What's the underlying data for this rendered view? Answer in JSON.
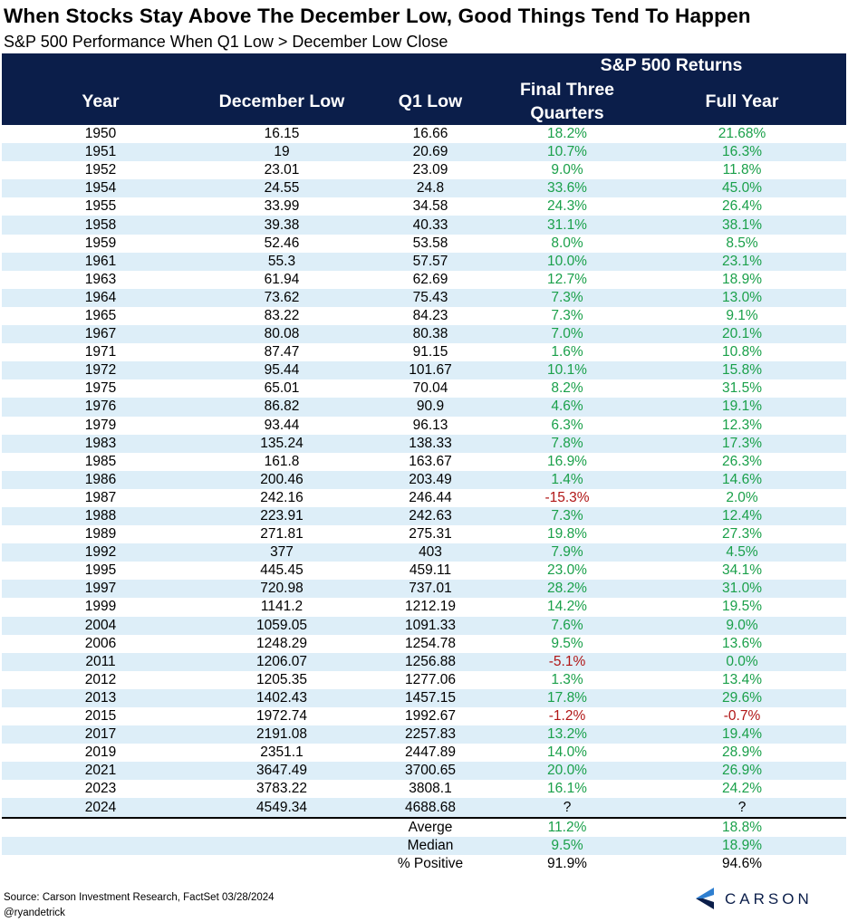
{
  "title": "When Stocks Stay Above The December Low, Good Things Tend To Happen",
  "subtitle": "S&P 500 Performance When Q1 Low > December Low Close",
  "headers": {
    "group": "S&P 500 Returns",
    "year": "Year",
    "dec_low": "December Low",
    "q1_low": "Q1 Low",
    "final_three_line1": "Final Three",
    "final_three_line2": "Quarters",
    "full_year": "Full Year"
  },
  "colors": {
    "header_bg": "#0b1e4a",
    "stripe": "#ddeef8",
    "positive": "#1aa04a",
    "negative": "#b01515"
  },
  "chart_data": {
    "type": "table",
    "title": "When Stocks Stay Above The December Low, Good Things Tend To Happen",
    "subtitle": "S&P 500 Performance When Q1 Low > December Low Close",
    "columns": [
      "Year",
      "December Low",
      "Q1 Low",
      "Final Three Quarters",
      "Full Year"
    ],
    "rows": [
      [
        "1950",
        "16.15",
        "16.66",
        "18.2%",
        "21.68%"
      ],
      [
        "1951",
        "19",
        "20.69",
        "10.7%",
        "16.3%"
      ],
      [
        "1952",
        "23.01",
        "23.09",
        "9.0%",
        "11.8%"
      ],
      [
        "1954",
        "24.55",
        "24.8",
        "33.6%",
        "45.0%"
      ],
      [
        "1955",
        "33.99",
        "34.58",
        "24.3%",
        "26.4%"
      ],
      [
        "1958",
        "39.38",
        "40.33",
        "31.1%",
        "38.1%"
      ],
      [
        "1959",
        "52.46",
        "53.58",
        "8.0%",
        "8.5%"
      ],
      [
        "1961",
        "55.3",
        "57.57",
        "10.0%",
        "23.1%"
      ],
      [
        "1963",
        "61.94",
        "62.69",
        "12.7%",
        "18.9%"
      ],
      [
        "1964",
        "73.62",
        "75.43",
        "7.3%",
        "13.0%"
      ],
      [
        "1965",
        "83.22",
        "84.23",
        "7.3%",
        "9.1%"
      ],
      [
        "1967",
        "80.08",
        "80.38",
        "7.0%",
        "20.1%"
      ],
      [
        "1971",
        "87.47",
        "91.15",
        "1.6%",
        "10.8%"
      ],
      [
        "1972",
        "95.44",
        "101.67",
        "10.1%",
        "15.8%"
      ],
      [
        "1975",
        "65.01",
        "70.04",
        "8.2%",
        "31.5%"
      ],
      [
        "1976",
        "86.82",
        "90.9",
        "4.6%",
        "19.1%"
      ],
      [
        "1979",
        "93.44",
        "96.13",
        "6.3%",
        "12.3%"
      ],
      [
        "1983",
        "135.24",
        "138.33",
        "7.8%",
        "17.3%"
      ],
      [
        "1985",
        "161.8",
        "163.67",
        "16.9%",
        "26.3%"
      ],
      [
        "1986",
        "200.46",
        "203.49",
        "1.4%",
        "14.6%"
      ],
      [
        "1987",
        "242.16",
        "246.44",
        "-15.3%",
        "2.0%"
      ],
      [
        "1988",
        "223.91",
        "242.63",
        "7.3%",
        "12.4%"
      ],
      [
        "1989",
        "271.81",
        "275.31",
        "19.8%",
        "27.3%"
      ],
      [
        "1992",
        "377",
        "403",
        "7.9%",
        "4.5%"
      ],
      [
        "1995",
        "445.45",
        "459.11",
        "23.0%",
        "34.1%"
      ],
      [
        "1997",
        "720.98",
        "737.01",
        "28.2%",
        "31.0%"
      ],
      [
        "1999",
        "1141.2",
        "1212.19",
        "14.2%",
        "19.5%"
      ],
      [
        "2004",
        "1059.05",
        "1091.33",
        "7.6%",
        "9.0%"
      ],
      [
        "2006",
        "1248.29",
        "1254.78",
        "9.5%",
        "13.6%"
      ],
      [
        "2011",
        "1206.07",
        "1256.88",
        "-5.1%",
        "0.0%"
      ],
      [
        "2012",
        "1205.35",
        "1277.06",
        "1.3%",
        "13.4%"
      ],
      [
        "2013",
        "1402.43",
        "1457.15",
        "17.8%",
        "29.6%"
      ],
      [
        "2015",
        "1972.74",
        "1992.67",
        "-1.2%",
        "-0.7%"
      ],
      [
        "2017",
        "2191.08",
        "2257.83",
        "13.2%",
        "19.4%"
      ],
      [
        "2019",
        "2351.1",
        "2447.89",
        "14.0%",
        "28.9%"
      ],
      [
        "2021",
        "3647.49",
        "3700.65",
        "20.0%",
        "26.9%"
      ],
      [
        "2023",
        "3783.22",
        "3808.1",
        "16.1%",
        "24.2%"
      ],
      [
        "2024",
        "4549.34",
        "4688.68",
        "?",
        "?"
      ]
    ],
    "summary": [
      {
        "label": "Averge",
        "final_three": "11.2%",
        "full_year": "18.8%"
      },
      {
        "label": "Median",
        "final_three": "9.5%",
        "full_year": "18.9%"
      },
      {
        "label": "% Positive",
        "final_three": "91.9%",
        "full_year": "94.6%"
      }
    ]
  },
  "footer": {
    "source": "Source: Carson Investment Research, FactSet 03/28/2024",
    "handle": "@ryandetrick",
    "logo_text": "CARSON"
  }
}
